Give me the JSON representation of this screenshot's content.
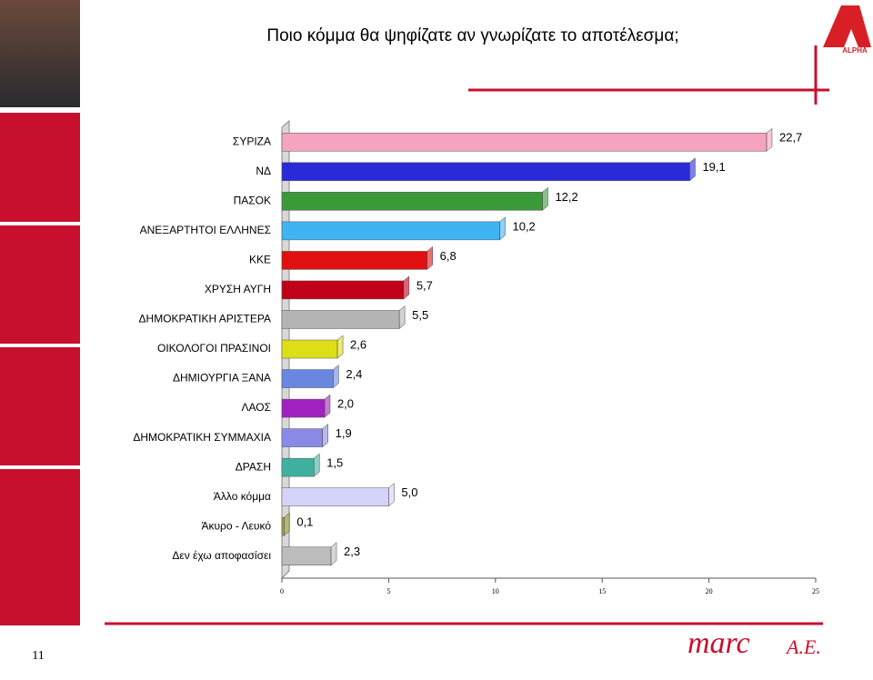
{
  "chart_data": {
    "type": "bar",
    "orientation": "horizontal",
    "title": "Ποιο κόμμα θα ψηφίζατε αν γνωρίζατε το αποτέλεσμα;",
    "categories": [
      "ΣΥΡΙΖΑ",
      "ΝΔ",
      "ΠΑΣΟΚ",
      "ΑΝΕΞΑΡΤΗΤΟΙ ΕΛΛΗΝΕΣ",
      "ΚΚΕ",
      "ΧΡΥΣΗ ΑΥΓΗ",
      "ΔΗΜΟΚΡΑΤΙΚΗ ΑΡΙΣΤΕΡΑ",
      "ΟΙΚΟΛΟΓΟΙ ΠΡΑΣΙΝΟΙ",
      "ΔΗΜΙΟΥΡΓΙΑ ΞΑΝΑ",
      "ΛΑΟΣ",
      "ΔΗΜΟΚΡΑΤΙΚΗ ΣΥΜΜΑΧΙΑ",
      "ΔΡΑΣΗ",
      "Άλλο κόμμα",
      "Άκυρο - Λευκό",
      "Δεν έχω αποφασίσει"
    ],
    "values": [
      22.7,
      19.1,
      12.2,
      10.2,
      6.8,
      5.7,
      5.5,
      2.6,
      2.4,
      2.0,
      1.9,
      1.5,
      5.0,
      0.1,
      2.3
    ],
    "value_labels": [
      "22,7",
      "19,1",
      "12,2",
      "10,2",
      "6,8",
      "5,7",
      "5,5",
      "2,6",
      "2,4",
      "2,0",
      "1,9",
      "1,5",
      "5,0",
      "0,1",
      "2,3"
    ],
    "colors": [
      "#f4a3c0",
      "#2a2ad8",
      "#3a9a3a",
      "#40b4f2",
      "#e01010",
      "#c00018",
      "#b4b4b4",
      "#dede18",
      "#6a86e0",
      "#a020c0",
      "#8a8ae6",
      "#40b0a0",
      "#d4d4fa",
      "#a0a040",
      "#bcbcbc"
    ],
    "xlim": [
      0,
      25
    ],
    "xticks": [
      0,
      5,
      10,
      15,
      20,
      25
    ]
  },
  "page_number": "11",
  "logo": "ALPHA",
  "footer_brand": {
    "name": "marc",
    "suffix": "A.E."
  }
}
